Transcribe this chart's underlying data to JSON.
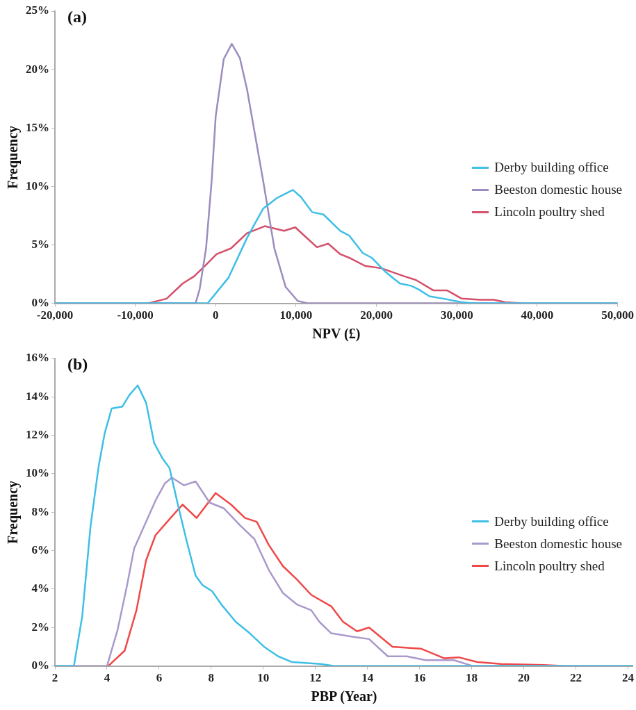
{
  "chart_data": [
    {
      "type": "line",
      "title": "(a)",
      "xlabel": "NPV (£)",
      "ylabel": "Frequency",
      "legend": "right",
      "grid": false,
      "marker": "none",
      "xlim": [
        -20000,
        50000
      ],
      "ylim": [
        0,
        25
      ],
      "xticks": [
        {
          "value": -20000,
          "label": "-20,000"
        },
        {
          "value": -10000,
          "label": "-10,000"
        },
        0,
        {
          "value": 10000,
          "label": "10,000"
        },
        {
          "value": 20000,
          "label": "20,000"
        },
        {
          "value": 30000,
          "label": "30,000"
        },
        {
          "value": 40000,
          "label": "40,000"
        },
        {
          "value": 50000,
          "label": "50,000"
        }
      ],
      "yticks": [
        {
          "value": 0,
          "label": "0%"
        },
        {
          "value": 5,
          "label": "5%"
        },
        {
          "value": 10,
          "label": "10%"
        },
        {
          "value": 15,
          "label": "15%"
        },
        {
          "value": 20,
          "label": "20%"
        },
        {
          "value": 25,
          "label": "25%"
        }
      ],
      "series": [
        {
          "name": "Derby building office",
          "color": "#3ebfe6",
          "x": [
            -20000,
            -1000,
            1600,
            3900,
            5900,
            7600,
            9600,
            10600,
            12000,
            13400,
            15500,
            16600,
            18300,
            19400,
            21100,
            22900,
            24300,
            25200,
            26600,
            28300,
            30600,
            32000,
            50000
          ],
          "values": [
            0,
            0,
            2.2,
            5.6,
            8.1,
            9,
            9.7,
            9.1,
            7.8,
            7.6,
            6.2,
            5.8,
            4.3,
            3.9,
            2.7,
            1.7,
            1.5,
            1.2,
            0.6,
            0.4,
            0.1,
            0,
            0
          ]
        },
        {
          "name": "Beeston domestic house",
          "color": "#9c8cbf",
          "x": [
            -20000,
            -2500,
            -2000,
            -1200,
            -500,
            0,
            1000,
            2000,
            3000,
            3900,
            5000,
            5900,
            7300,
            8700,
            10200,
            11500,
            50000
          ],
          "values": [
            0,
            0,
            1.2,
            4.7,
            10.5,
            16,
            20.9,
            22.2,
            21,
            18.3,
            14,
            10.5,
            4.7,
            1.4,
            0.2,
            0,
            0
          ]
        },
        {
          "name": "Lincoln poultry shed",
          "color": "#d4506a",
          "x": [
            -8400,
            -6100,
            -4100,
            -2700,
            -1200,
            100,
            1900,
            3900,
            6100,
            8500,
            9900,
            11000,
            12600,
            14000,
            15500,
            16600,
            18600,
            20600,
            23500,
            24900,
            27100,
            28800,
            30600,
            32900,
            34600,
            36000,
            38000
          ],
          "values": [
            0,
            0.4,
            1.7,
            2.3,
            3.3,
            4.2,
            4.7,
            6,
            6.6,
            6.2,
            6.5,
            5.8,
            4.8,
            5.1,
            4.2,
            3.9,
            3.2,
            3,
            2.3,
            2,
            1.1,
            1.1,
            0.4,
            0.3,
            0.3,
            0.1,
            0
          ]
        }
      ]
    },
    {
      "type": "line",
      "title": "(b)",
      "xlabel": "PBP (Year)",
      "ylabel": "Frequency",
      "legend": "right",
      "grid": false,
      "marker": "none",
      "xlim": [
        2,
        24.2
      ],
      "ylim": [
        0,
        16
      ],
      "xticks": [
        2,
        4,
        6,
        8,
        10,
        12,
        14,
        16,
        18,
        20,
        22,
        24
      ],
      "yticks": [
        {
          "value": 0,
          "label": "0%"
        },
        {
          "value": 2,
          "label": "2%"
        },
        {
          "value": 4,
          "label": "4%"
        },
        {
          "value": 6,
          "label": "6%"
        },
        {
          "value": 8,
          "label": "8%"
        },
        {
          "value": 10,
          "label": "10%"
        },
        {
          "value": 12,
          "label": "12%"
        },
        {
          "value": 14,
          "label": "14%"
        },
        {
          "value": 16,
          "label": "16%"
        }
      ],
      "series": [
        {
          "name": "Derby building office",
          "color": "#3ebfe6",
          "x": [
            2,
            2.73,
            3.05,
            3.37,
            3.68,
            3.91,
            4.18,
            4.59,
            4.86,
            5.18,
            5.5,
            5.81,
            6.13,
            6.4,
            6.72,
            7.04,
            7.4,
            7.67,
            8.03,
            8.39,
            8.94,
            9.48,
            10.03,
            10.57,
            11.11,
            12.2,
            12.7,
            24.2
          ],
          "values": [
            0,
            0,
            2.6,
            7.3,
            10.4,
            12.1,
            13.4,
            13.5,
            14.1,
            14.6,
            13.7,
            11.6,
            10.8,
            10.3,
            8.4,
            6.6,
            4.7,
            4.2,
            3.9,
            3.2,
            2.3,
            1.7,
            1,
            0.5,
            0.2,
            0.1,
            0,
            0
          ]
        },
        {
          "name": "Beeston domestic house",
          "color": "#a999cc",
          "x": [
            2,
            4,
            4.41,
            4.77,
            5.04,
            5.4,
            5.86,
            6.22,
            6.49,
            6.95,
            7.4,
            7.94,
            8.49,
            9.12,
            9.66,
            10.21,
            10.75,
            11.29,
            11.84,
            12.15,
            12.61,
            13.51,
            14.06,
            14.78,
            15.51,
            16.23,
            17.32,
            18.04,
            24.2
          ],
          "values": [
            0,
            0,
            1.9,
            4.2,
            6.1,
            7.2,
            8.6,
            9.5,
            9.8,
            9.4,
            9.6,
            8.5,
            8.2,
            7.3,
            6.6,
            5,
            3.8,
            3.2,
            2.9,
            2.3,
            1.7,
            1.5,
            1.4,
            0.5,
            0.5,
            0.3,
            0.3,
            0,
            0
          ]
        },
        {
          "name": "Lincoln poultry shed",
          "color": "#f04848",
          "x": [
            4.05,
            4.68,
            5.13,
            5.5,
            5.86,
            6.31,
            6.9,
            7.44,
            8.17,
            8.76,
            9.3,
            9.75,
            10.21,
            10.75,
            11.29,
            11.84,
            12.61,
            13.06,
            13.6,
            14.06,
            14.96,
            16.05,
            16.95,
            17.5,
            18.22,
            19.13,
            20.76,
            21.48
          ],
          "values": [
            0,
            0.8,
            2.9,
            5.5,
            6.8,
            7.5,
            8.4,
            7.7,
            9,
            8.4,
            7.7,
            7.5,
            6.3,
            5.2,
            4.5,
            3.7,
            3.1,
            2.3,
            1.8,
            2,
            1,
            0.9,
            0.4,
            0.45,
            0.2,
            0.1,
            0.05,
            0
          ]
        }
      ]
    }
  ]
}
